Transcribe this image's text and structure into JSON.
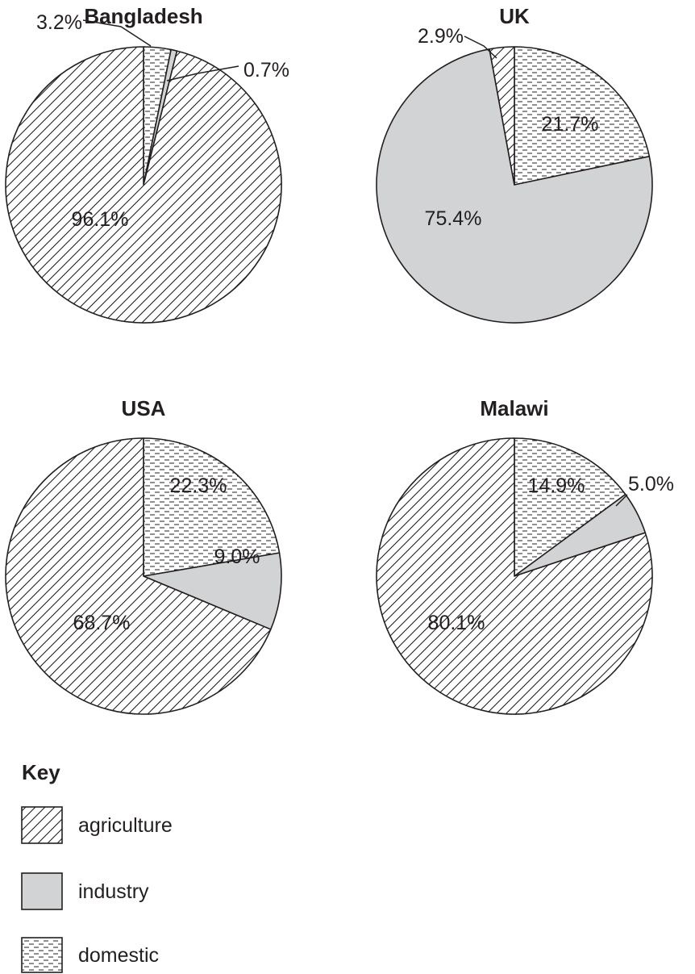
{
  "chart_data": [
    {
      "type": "pie",
      "title": "Bangladesh",
      "slices": [
        {
          "category": "domestic",
          "value": 3.2,
          "label": "3.2%"
        },
        {
          "category": "industry",
          "value": 0.7,
          "label": "0.7%"
        },
        {
          "category": "agriculture",
          "value": 96.1,
          "label": "96.1%"
        }
      ]
    },
    {
      "type": "pie",
      "title": "UK",
      "slices": [
        {
          "category": "domestic",
          "value": 21.7,
          "label": "21.7%"
        },
        {
          "category": "industry",
          "value": 75.4,
          "label": "75.4%"
        },
        {
          "category": "agriculture",
          "value": 2.9,
          "label": "2.9%"
        }
      ]
    },
    {
      "type": "pie",
      "title": "USA",
      "slices": [
        {
          "category": "domestic",
          "value": 22.3,
          "label": "22.3%"
        },
        {
          "category": "industry",
          "value": 9.0,
          "label": "9.0%"
        },
        {
          "category": "agriculture",
          "value": 68.7,
          "label": "68.7%"
        }
      ]
    },
    {
      "type": "pie",
      "title": "Malawi",
      "slices": [
        {
          "category": "domestic",
          "value": 14.9,
          "label": "14.9%"
        },
        {
          "category": "industry",
          "value": 5.0,
          "label": "5.0%"
        },
        {
          "category": "agriculture",
          "value": 80.1,
          "label": "80.1%"
        }
      ]
    }
  ],
  "key": {
    "title": "Key",
    "items": [
      {
        "id": "agriculture",
        "label": "agriculture",
        "pattern": "diagonal-hatch"
      },
      {
        "id": "industry",
        "label": "industry",
        "pattern": "solid-grey"
      },
      {
        "id": "domestic",
        "label": "domestic",
        "pattern": "dashed-lines"
      }
    ]
  },
  "colors": {
    "ink": "#231f20",
    "industry_fill": "#d1d3d4",
    "background": "#ffffff"
  }
}
